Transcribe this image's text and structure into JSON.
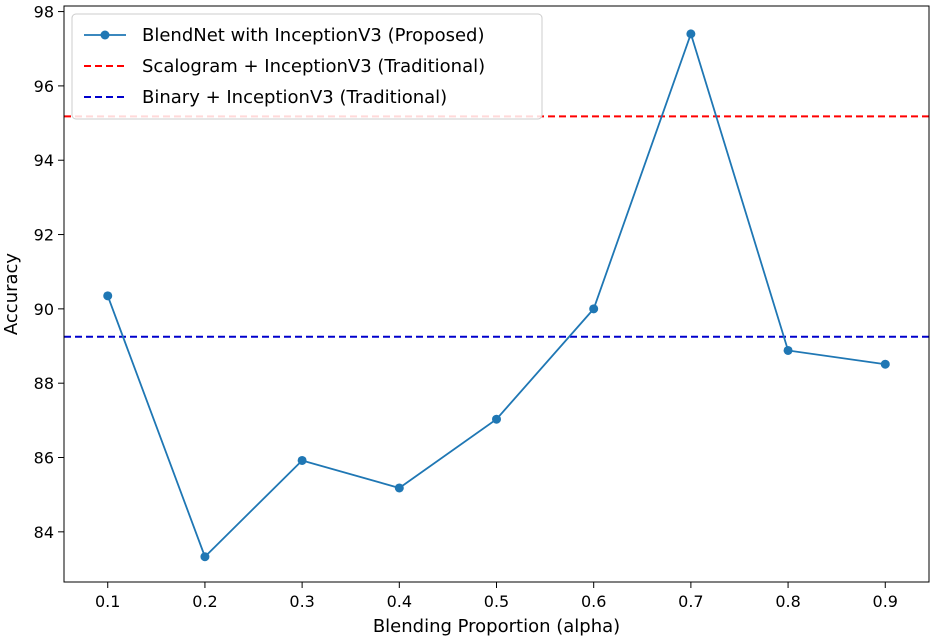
{
  "chart_data": {
    "type": "line",
    "xlabel": "Blending Proportion (alpha)",
    "ylabel": "Accuracy",
    "xlim": [
      0.055,
      0.945
    ],
    "ylim": [
      82.65,
      98.15
    ],
    "x_ticks": [
      "0.1",
      "0.2",
      "0.3",
      "0.4",
      "0.5",
      "0.6",
      "0.7",
      "0.8",
      "0.9"
    ],
    "y_ticks": [
      "84",
      "86",
      "88",
      "90",
      "92",
      "94",
      "96",
      "98"
    ],
    "grid": false,
    "legend_position": "top-left",
    "series": [
      {
        "name": "BlendNet with InceptionV3 (Proposed)",
        "style": "solid-marker",
        "color": "#1f77b4",
        "x": [
          0.1,
          0.2,
          0.3,
          0.4,
          0.5,
          0.6,
          0.7,
          0.8,
          0.9
        ],
        "values": [
          90.35,
          83.33,
          85.92,
          85.18,
          87.03,
          90.0,
          97.4,
          88.88,
          88.51
        ]
      }
    ],
    "reference_lines": [
      {
        "name": "Scalogram + InceptionV3 (Traditional)",
        "value": 95.18,
        "color": "#ff0000",
        "style": "dashed"
      },
      {
        "name": "Binary + InceptionV3 (Traditional)",
        "value": 89.25,
        "color": "#0000cc",
        "style": "dashed"
      }
    ]
  }
}
